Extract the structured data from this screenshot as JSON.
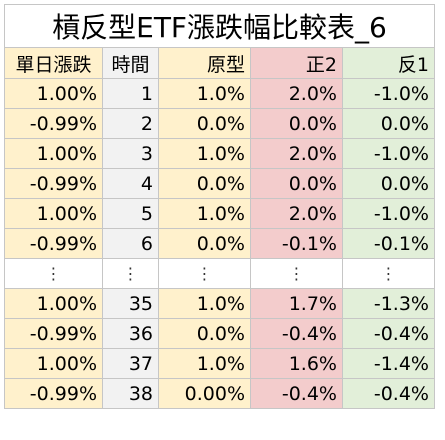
{
  "title": "槓反型ETF漲跌幅比較表_6",
  "headers": [
    "單日漲跌",
    "時間",
    "原型",
    "正2",
    "反1"
  ],
  "rows_top": [
    [
      "1.00%",
      "1",
      "1.0%",
      "2.0%",
      "-1.0%"
    ],
    [
      "-0.99%",
      "2",
      "0.0%",
      "0.0%",
      "0.0%"
    ],
    [
      "1.00%",
      "3",
      "1.0%",
      "2.0%",
      "-1.0%"
    ],
    [
      "-0.99%",
      "4",
      "0.0%",
      "0.0%",
      "0.0%"
    ],
    [
      "1.00%",
      "5",
      "1.0%",
      "2.0%",
      "-1.0%"
    ],
    [
      "-0.99%",
      "6",
      "0.0%",
      "-0.1%",
      "-0.1%"
    ]
  ],
  "ellipsis": [
    "⋮",
    "⋮",
    "⋮",
    "⋮",
    "⋮"
  ],
  "rows_bottom": [
    [
      "1.00%",
      "35",
      "1.0%",
      "1.7%",
      "-1.3%"
    ],
    [
      "-0.99%",
      "36",
      "0.0%",
      "-0.4%",
      "-0.4%"
    ],
    [
      "1.00%",
      "37",
      "1.0%",
      "1.6%",
      "-1.4%"
    ],
    [
      "-0.99%",
      "38",
      "0.00%",
      "-0.4%",
      "-0.4%"
    ]
  ],
  "colors": {
    "yellow": "#fff1cc",
    "gray": "#f2f2f2",
    "red": "#f3cccc",
    "green": "#e2efd9",
    "grid": "#c6c6c6"
  }
}
